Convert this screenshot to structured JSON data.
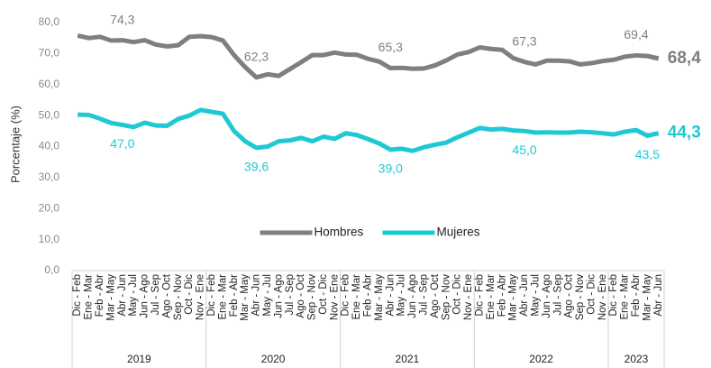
{
  "chart_data": {
    "type": "line",
    "ylabel": "Porcentaje (%)",
    "ylim": [
      0,
      80
    ],
    "yticks": [
      {
        "value": 0,
        "label": "0,0"
      },
      {
        "value": 10,
        "label": "10,0"
      },
      {
        "value": 20,
        "label": "20,0"
      },
      {
        "value": 30,
        "label": "30,0"
      },
      {
        "value": 40,
        "label": "40,0"
      },
      {
        "value": 50,
        "label": "50,0"
      },
      {
        "value": 60,
        "label": "60,0"
      },
      {
        "value": 70,
        "label": "70,0"
      },
      {
        "value": 80,
        "label": "80,0"
      }
    ],
    "legend": "center",
    "years": [
      "2019",
      "2020",
      "2021",
      "2022",
      "2023"
    ],
    "categories": [
      "Dic - Feb",
      "Ene - Mar",
      "Feb - Abr",
      "Mar - May",
      "Abr - Jun",
      "May - Jul",
      "Jun - Ago",
      "Jul - Sep",
      "Ago - Oct",
      "Sep - Nov",
      "Oct - Dic",
      "Nov - Ene",
      "Dic - Feb",
      "Ene - Mar",
      "Feb - Abr",
      "Mar - May",
      "Abr - Jun",
      "May - Jul",
      "Jun - Ago",
      "Jul - Sep",
      "Ago - Oct",
      "Sep - Nov",
      "Oct - Dic",
      "Nov - Ene",
      "Dic - Feb",
      "Ene - Mar",
      "Feb - Abr",
      "Mar - May",
      "Abr - Jun",
      "May - Jul",
      "Jun - Ago",
      "Jul - Sep",
      "Ago - Oct",
      "Sep - Nov",
      "Oct - Dic",
      "Nov - Ene",
      "Dic - Feb",
      "Ene - Mar",
      "Feb - Abr",
      "Mar - May",
      "Abr - Jun",
      "May - Jul",
      "Jun - Ago",
      "Jul - Sep",
      "Ago - Oct",
      "Sep - Nov",
      "Oct - Dic",
      "Nov - Ene",
      "Dic - Feb",
      "Ene - Mar",
      "Feb - Abr",
      "Mar - May",
      "Abr - Jun"
    ],
    "series": [
      {
        "name": "Hombres",
        "color": "#7f7f7f",
        "values": [
          75.8,
          75.0,
          75.4,
          74.2,
          74.3,
          73.7,
          74.3,
          72.9,
          72.3,
          72.7,
          75.4,
          75.6,
          75.3,
          74.2,
          69.5,
          65.6,
          62.3,
          63.3,
          62.8,
          65.0,
          67.2,
          69.5,
          69.5,
          70.3,
          69.7,
          69.6,
          68.3,
          67.4,
          65.3,
          65.4,
          65.1,
          65.2,
          66.2,
          67.8,
          69.7,
          70.5,
          72.0,
          71.5,
          71.2,
          68.5,
          67.3,
          66.5,
          67.7,
          67.7,
          67.5,
          66.5,
          66.9,
          67.6,
          68.0,
          69.0,
          69.4,
          69.2,
          68.4
        ],
        "value_labels": [
          null,
          null,
          null,
          null,
          "74,3",
          null,
          null,
          null,
          null,
          null,
          null,
          null,
          null,
          null,
          null,
          null,
          "62,3",
          null,
          null,
          null,
          null,
          null,
          null,
          null,
          null,
          null,
          null,
          null,
          "65,3",
          null,
          null,
          null,
          null,
          null,
          null,
          null,
          null,
          null,
          null,
          null,
          "67,3",
          null,
          null,
          null,
          null,
          null,
          null,
          null,
          null,
          null,
          "69,4",
          null,
          "68,4"
        ]
      },
      {
        "name": "Mujeres",
        "color": "#1fc9d3",
        "values": [
          50.3,
          50.2,
          49.0,
          47.6,
          47.0,
          46.3,
          47.7,
          46.8,
          46.7,
          48.9,
          50.0,
          51.8,
          51.2,
          50.6,
          45.0,
          41.7,
          39.6,
          40.0,
          41.7,
          42.0,
          42.8,
          41.7,
          43.2,
          42.5,
          44.3,
          43.7,
          42.4,
          41.0,
          39.0,
          39.3,
          38.6,
          39.8,
          40.6,
          41.3,
          43.0,
          44.5,
          46.0,
          45.5,
          45.7,
          45.2,
          45.0,
          44.5,
          44.6,
          44.5,
          44.5,
          44.8,
          44.6,
          44.3,
          43.9,
          44.8,
          45.3,
          43.5,
          44.3
        ],
        "value_labels": [
          null,
          null,
          null,
          null,
          "47,0",
          null,
          null,
          null,
          null,
          null,
          null,
          null,
          null,
          null,
          null,
          null,
          "39,6",
          null,
          null,
          null,
          null,
          null,
          null,
          null,
          null,
          null,
          null,
          null,
          "39,0",
          null,
          null,
          null,
          null,
          null,
          null,
          null,
          null,
          null,
          null,
          null,
          "45,0",
          null,
          null,
          null,
          null,
          null,
          null,
          null,
          null,
          null,
          null,
          "43,5",
          "44,3"
        ]
      }
    ]
  }
}
